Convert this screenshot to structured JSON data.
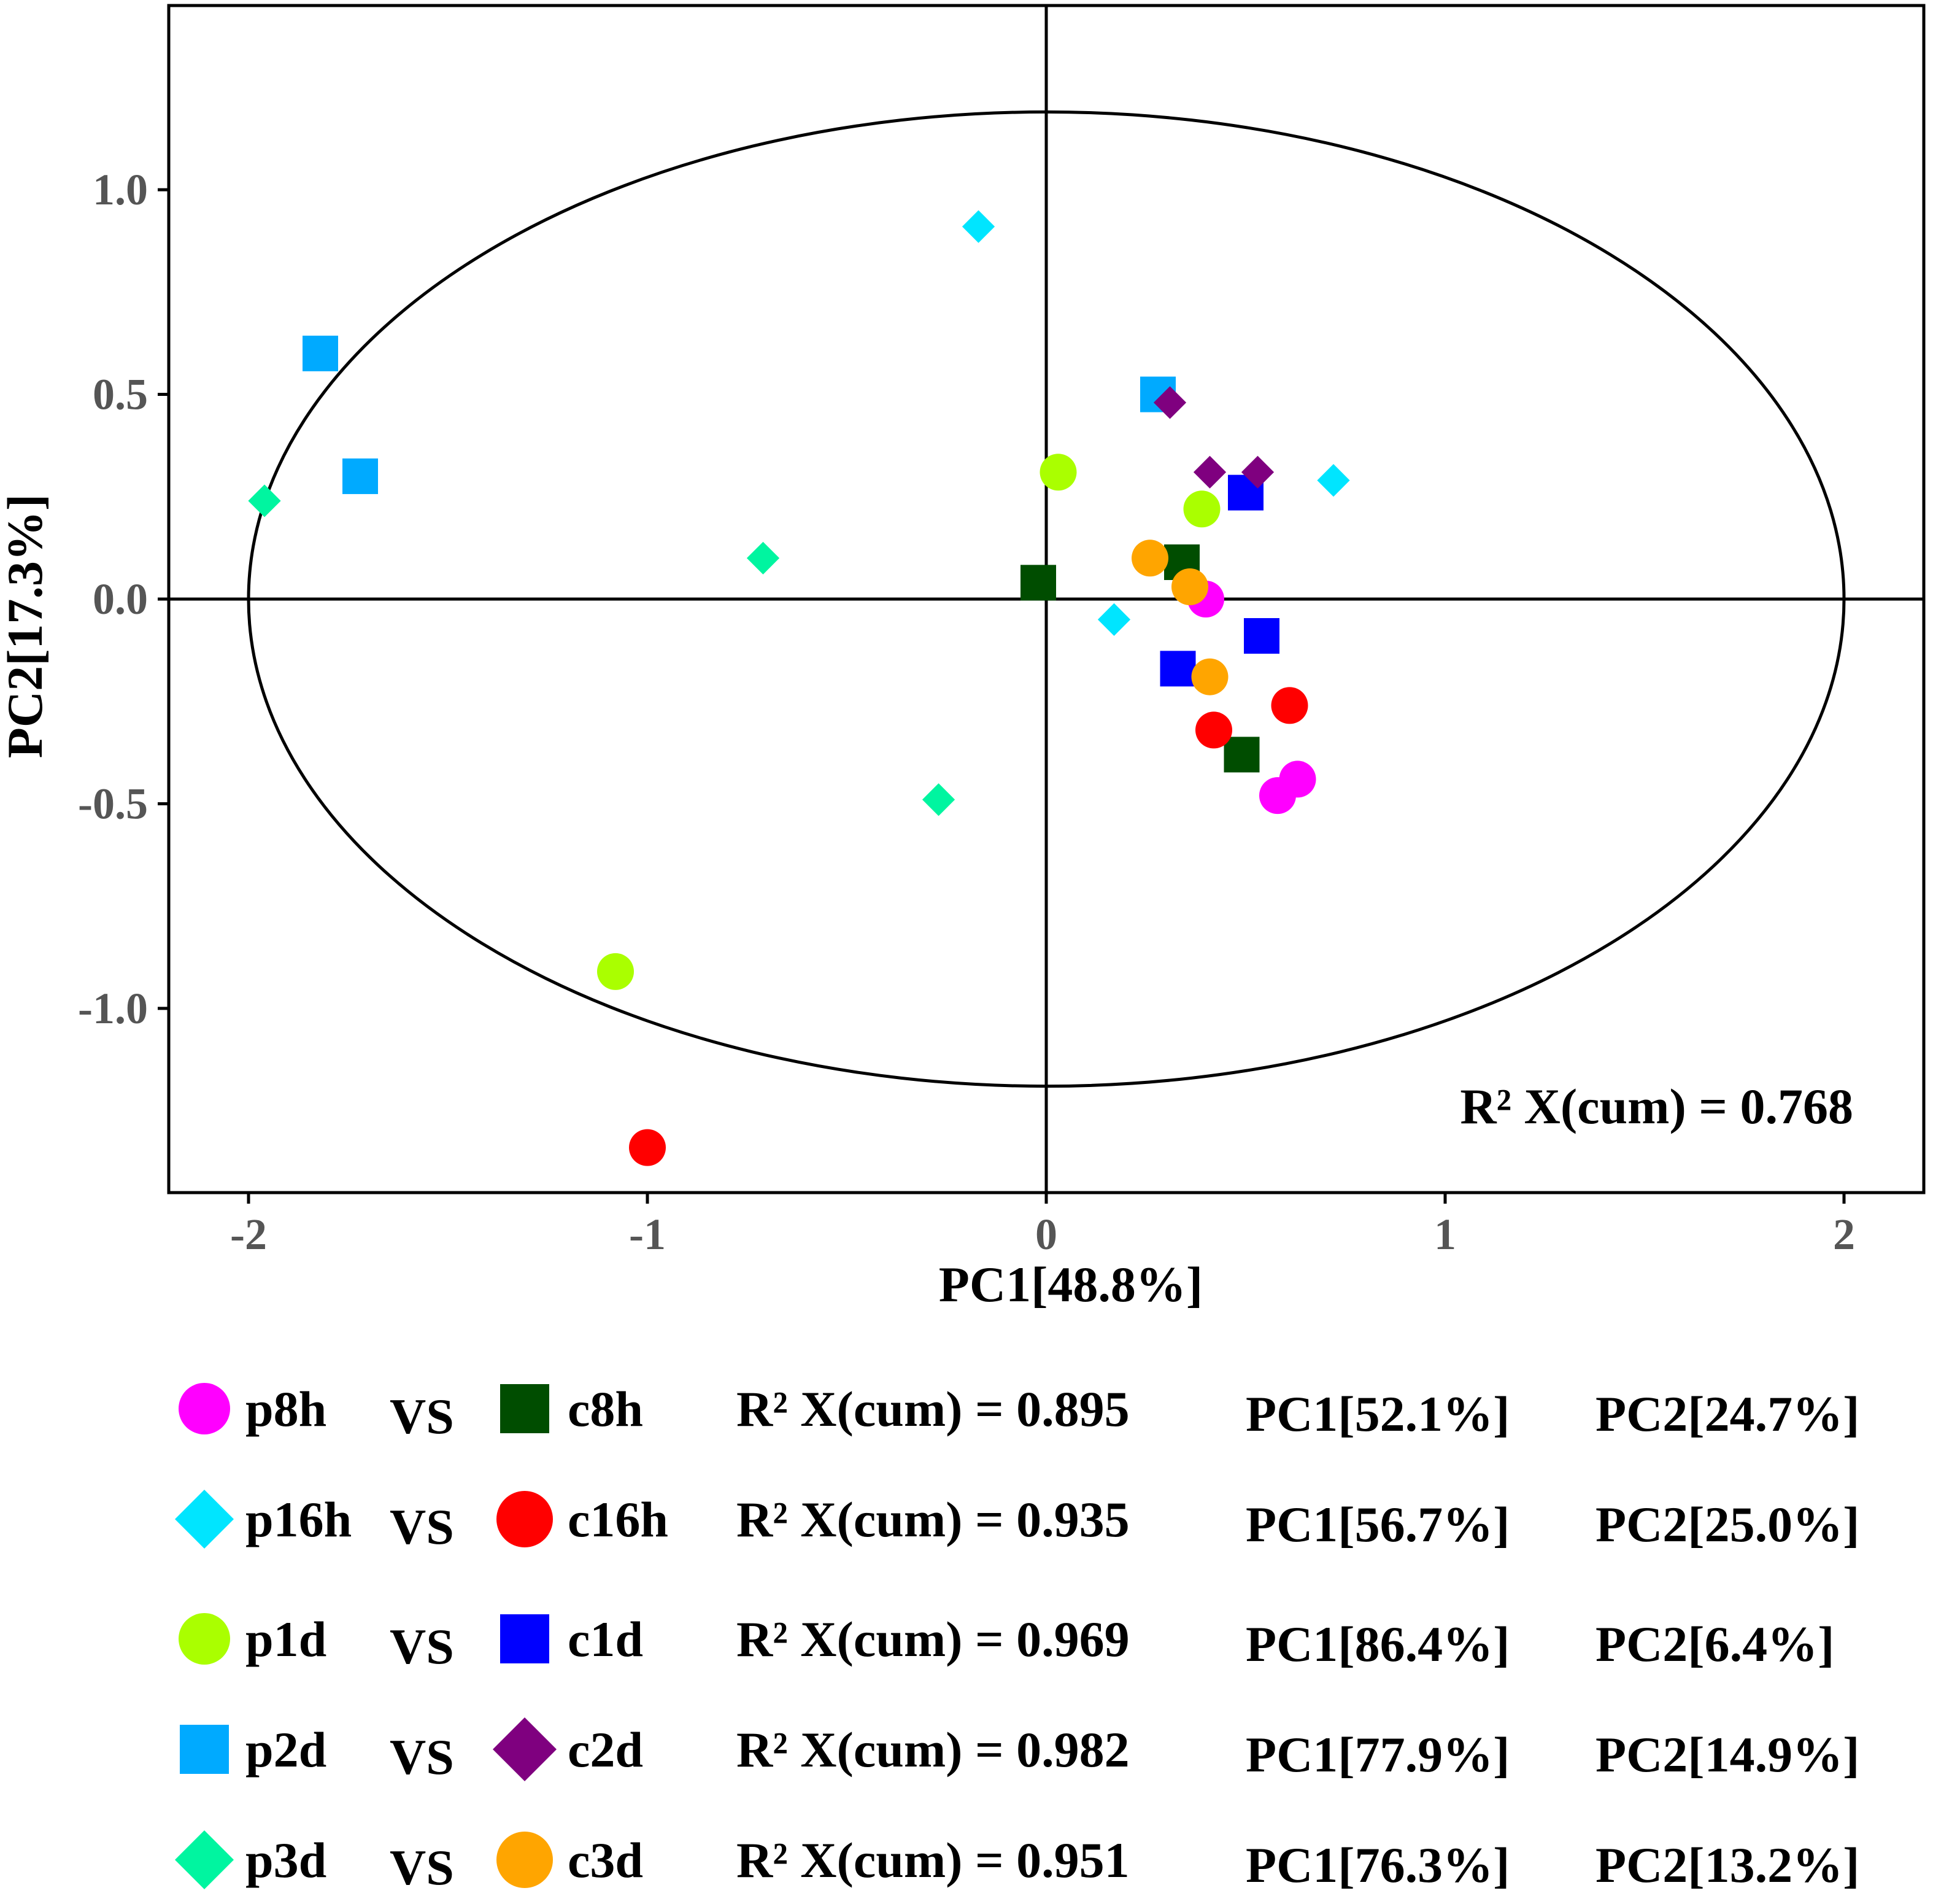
{
  "chart_data": {
    "type": "scatter",
    "xlabel": "PC1[48.8%]",
    "ylabel": "PC2[17.3%]",
    "xlim": [
      -2.2,
      2.2
    ],
    "ylim": [
      -1.45,
      1.45
    ],
    "xticks": [
      -2,
      -1,
      0,
      1,
      2
    ],
    "xtick_labels": [
      "-2",
      "-1",
      "0",
      "1",
      "2"
    ],
    "yticks": [
      -1.0,
      -0.5,
      0.0,
      0.5,
      1.0
    ],
    "ytick_labels": [
      "-1.0",
      "-0.5",
      "0.0",
      "0.5",
      "1.0"
    ],
    "ellipse": {
      "cx": 0,
      "cy": 0,
      "rx": 2.0,
      "ry": 1.19
    },
    "crosshair": {
      "x": 0,
      "y": 0
    },
    "annotation": "R² X(cum) = 0.768",
    "series": [
      {
        "name": "p8h",
        "marker": "circle",
        "color": "#FF00FF",
        "points": [
          [
            0.4,
            0.0
          ],
          [
            0.58,
            -0.48
          ],
          [
            0.63,
            -0.44
          ]
        ]
      },
      {
        "name": "c8h",
        "marker": "square",
        "color": "#004D00",
        "points": [
          [
            -0.02,
            0.04
          ],
          [
            0.34,
            0.09
          ],
          [
            0.49,
            -0.38
          ]
        ]
      },
      {
        "name": "p16h",
        "marker": "diamond-small",
        "color": "#00E5FF",
        "points": [
          [
            -0.17,
            0.91
          ],
          [
            0.17,
            -0.05
          ],
          [
            0.72,
            0.29
          ]
        ]
      },
      {
        "name": "c16h",
        "marker": "circle",
        "color": "#FF0000",
        "points": [
          [
            0.42,
            -0.32
          ],
          [
            0.61,
            -0.26
          ],
          [
            -1.0,
            -1.34
          ]
        ]
      },
      {
        "name": "p1d",
        "marker": "circle",
        "color": "#AAFF00",
        "points": [
          [
            0.03,
            0.31
          ],
          [
            0.39,
            0.22
          ],
          [
            -1.08,
            -0.91
          ]
        ]
      },
      {
        "name": "c1d",
        "marker": "square",
        "color": "#0000FF",
        "points": [
          [
            0.5,
            0.26
          ],
          [
            0.54,
            -0.09
          ],
          [
            0.33,
            -0.17
          ]
        ]
      },
      {
        "name": "p2d",
        "marker": "square",
        "color": "#00AAFF",
        "points": [
          [
            -1.82,
            0.6
          ],
          [
            -1.72,
            0.3
          ],
          [
            0.28,
            0.5
          ]
        ]
      },
      {
        "name": "c2d",
        "marker": "diamond-small",
        "color": "#7F007F",
        "points": [
          [
            0.31,
            0.48
          ],
          [
            0.41,
            0.31
          ],
          [
            0.53,
            0.31
          ]
        ]
      },
      {
        "name": "p3d",
        "marker": "diamond-small",
        "color": "#00F5A0",
        "points": [
          [
            -1.96,
            0.24
          ],
          [
            -0.71,
            0.1
          ],
          [
            -0.27,
            -0.49
          ]
        ]
      },
      {
        "name": "c3d",
        "marker": "circle",
        "color": "#FFA500",
        "points": [
          [
            0.26,
            0.1
          ],
          [
            0.36,
            0.03
          ],
          [
            0.41,
            -0.19
          ]
        ]
      }
    ],
    "legend": [
      {
        "p_name": "p8h",
        "p_marker": "circle",
        "p_color": "#FF00FF",
        "vs": "VS",
        "c_name": "c8h",
        "c_marker": "square",
        "c_color": "#004D00",
        "r2": "R² X(cum) = 0.895",
        "pc1": "PC1[52.1%]",
        "pc2": "PC2[24.7%]"
      },
      {
        "p_name": "p16h",
        "p_marker": "diamond",
        "p_color": "#00E5FF",
        "vs": "VS",
        "c_name": "c16h",
        "c_marker": "circle",
        "c_color": "#FF0000",
        "r2": "R² X(cum) = 0.935",
        "pc1": "PC1[56.7%]",
        "pc2": "PC2[25.0%]"
      },
      {
        "p_name": "p1d",
        "p_marker": "circle",
        "p_color": "#AAFF00",
        "vs": "VS",
        "c_name": "c1d",
        "c_marker": "square",
        "c_color": "#0000FF",
        "r2": "R² X(cum) = 0.969",
        "pc1": "PC1[86.4%]",
        "pc2": "PC2[6.4%]"
      },
      {
        "p_name": "p2d",
        "p_marker": "square",
        "p_color": "#00AAFF",
        "vs": "VS",
        "c_name": "c2d",
        "c_marker": "diamond",
        "c_color": "#7F007F",
        "r2": "R² X(cum) = 0.982",
        "pc1": "PC1[77.9%]",
        "pc2": "PC2[14.9%]"
      },
      {
        "p_name": "p3d",
        "p_marker": "diamond",
        "p_color": "#00F5A0",
        "vs": "VS",
        "c_name": "c3d",
        "c_marker": "circle",
        "c_color": "#FFA500",
        "r2": "R² X(cum) = 0.951",
        "pc1": "PC1[76.3%]",
        "pc2": "PC2[13.2%]"
      }
    ]
  }
}
